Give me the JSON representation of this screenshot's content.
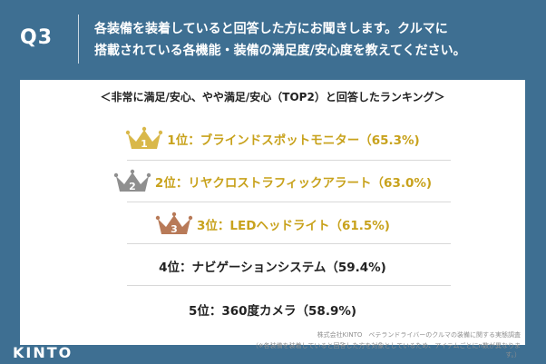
{
  "header": {
    "question_label": "Q3",
    "question_line1": "各装備を装着していると回答した方にお聞きします。クルマに",
    "question_line2": "搭載されている各機能・装備の満足度/安心度を教えてください。"
  },
  "card": {
    "subtitle": "＜非常に満足/安心、やや満足/安心（TOP2）と回答したランキング＞",
    "rankings": [
      {
        "text": "1位：ブラインドスポットモニター（65.3%)",
        "crown_number": "1",
        "color": "#c8a21c",
        "crown_color": "#d9b84a"
      },
      {
        "text": "2位：リヤクロストラフィックアラート（63.0%)",
        "crown_number": "2",
        "color": "#c8a21c",
        "crown_color": "#8f8f8f"
      },
      {
        "text": "3位：LEDヘッドライト（61.5%)",
        "crown_number": "3",
        "color": "#c8a21c",
        "crown_color": "#b87a58"
      },
      {
        "text": "4位：ナビゲーションシステム（59.4%)",
        "color": "#222222"
      },
      {
        "text": "5位：360度カメラ（58.9%)",
        "color": "#222222"
      }
    ]
  },
  "footer": {
    "source": "株式会社KINTO　ベテランドライバーのクルマの装備に関する実態調査",
    "note": "（※各装備を装着していると回答した方を対象としているため、アイテムごとにn数が異なります。）",
    "logo": "KINTO"
  }
}
